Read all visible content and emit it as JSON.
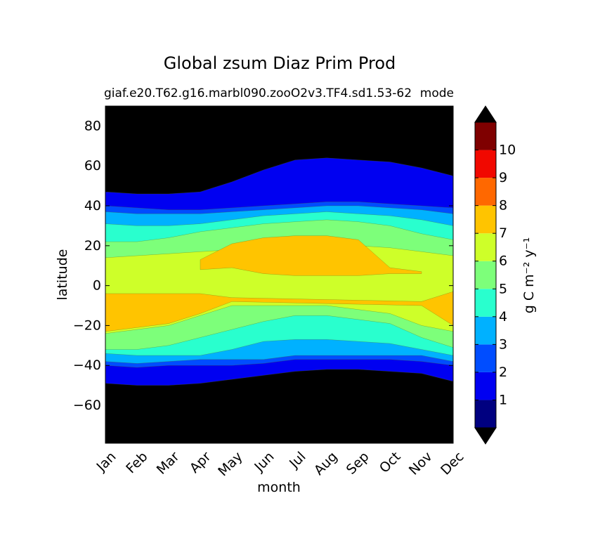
{
  "chart_data": {
    "type": "heatmap",
    "title": "Global zsum Diaz Prim Prod",
    "subtitle_left": "giaf.e20.T62.g16.marbl090.zooO2v3.TF4.sd1.53-62",
    "subtitle_right": "mode",
    "xlabel": "month",
    "ylabel": "latitude",
    "x_ticks": [
      "Jan",
      "Feb",
      "Mar",
      "Apr",
      "May",
      "Jun",
      "Jul",
      "Aug",
      "Sep",
      "Oct",
      "Nov",
      "Dec"
    ],
    "y_ticks": [
      80,
      60,
      40,
      20,
      0,
      -20,
      -40,
      -60
    ],
    "y_tick_labels": [
      "80",
      "60",
      "40",
      "20",
      "0",
      "−20",
      "−40",
      "−60"
    ],
    "ylim": [
      -79,
      90
    ],
    "xlim": [
      0,
      11
    ],
    "colorbar": {
      "label": "g C m⁻² y⁻¹",
      "levels": [
        0,
        1,
        2,
        3,
        4,
        5,
        6,
        7,
        8,
        9,
        10,
        11
      ],
      "tick_values": [
        1,
        2,
        3,
        4,
        5,
        6,
        7,
        8,
        9,
        10
      ],
      "tick_labels": [
        "1",
        "2",
        "3",
        "4",
        "5",
        "6",
        "7",
        "8",
        "9",
        "10"
      ],
      "colors": [
        "#000080",
        "#0000f1",
        "#004dff",
        "#00b1ff",
        "#29ffce",
        "#7dff7a",
        "#ceff29",
        "#ffc400",
        "#ff6800",
        "#f10800",
        "#7f0000"
      ],
      "under_color": "#000000",
      "over_color": "#000000",
      "extend": "both"
    },
    "background_color": "#000000",
    "contour_bands": {
      "months": [
        0,
        1,
        2,
        3,
        4,
        5,
        6,
        7,
        8,
        9,
        10,
        11
      ],
      "bands": [
        {
          "level": 1,
          "north": [
            47,
            46,
            46,
            47,
            52,
            58,
            63,
            64,
            63,
            62,
            59,
            55
          ],
          "south": [
            -49,
            -50,
            -50,
            -49,
            -47,
            -45,
            -43,
            -42,
            -42,
            -43,
            -44,
            -48
          ]
        },
        {
          "level": 2,
          "north": [
            40,
            39,
            38,
            38,
            39,
            40,
            41,
            42,
            42,
            41,
            40,
            39
          ],
          "south": [
            -40,
            -41,
            -40,
            -40,
            -40,
            -39,
            -37,
            -37,
            -37,
            -37,
            -38,
            -40
          ]
        },
        {
          "level": 3,
          "north": [
            37,
            36,
            36,
            36,
            37,
            38,
            39,
            40,
            40,
            39,
            38,
            36
          ],
          "south": [
            -38,
            -39,
            -38,
            -37,
            -37,
            -37,
            -35,
            -35,
            -35,
            -35,
            -35,
            -38
          ]
        },
        {
          "level": 4,
          "north": [
            31,
            30,
            30,
            31,
            33,
            35,
            36,
            37,
            36,
            35,
            33,
            30
          ],
          "south": [
            -34,
            -35,
            -35,
            -35,
            -32,
            -28,
            -27,
            -27,
            -28,
            -29,
            -32,
            -35
          ]
        },
        {
          "level": 5,
          "north": [
            22,
            22,
            24,
            27,
            29,
            31,
            32,
            33,
            32,
            30,
            26,
            23
          ],
          "south": [
            -32,
            -32,
            -30,
            -26,
            -22,
            -18,
            -15,
            -15,
            -17,
            -19,
            -26,
            -31
          ]
        },
        {
          "level": 6,
          "north": [
            14,
            15,
            16,
            17,
            18,
            19,
            20,
            20,
            20,
            19,
            17,
            15
          ],
          "south": [
            -24,
            -22,
            -20,
            -15,
            -10,
            -10,
            -10,
            -10,
            -12,
            -14,
            -20,
            -23
          ]
        },
        {
          "level": 7,
          "north": [
            null,
            null,
            null,
            13,
            21,
            24,
            25,
            25,
            23,
            9,
            7,
            null
          ],
          "south": [
            null,
            null,
            null,
            8,
            9,
            6,
            5,
            5,
            5,
            6,
            6,
            null
          ]
        },
        {
          "level": 7,
          "north": [
            -4,
            -4,
            -4,
            -4,
            -6,
            null,
            null,
            null,
            null,
            null,
            -8,
            -3
          ],
          "south": [
            -23,
            -21,
            -19,
            -14,
            -8,
            null,
            null,
            null,
            null,
            null,
            -10,
            -20
          ]
        }
      ]
    }
  }
}
